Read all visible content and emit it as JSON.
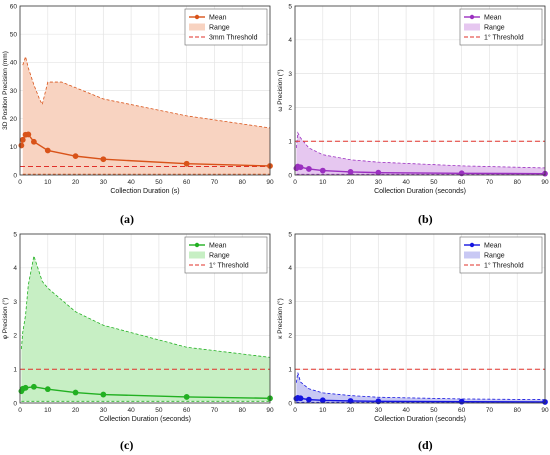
{
  "chart_data": [
    {
      "type": "line",
      "caption": "(a)",
      "xlabel": "Collection Duration (s)",
      "ylabel": "3D Position Precision (mm)",
      "xlim": [
        0,
        90
      ],
      "ylim": [
        0,
        60
      ],
      "xticks": [
        "0",
        "10",
        "20",
        "30",
        "40",
        "50",
        "60",
        "70",
        "80",
        "90"
      ],
      "yticks": [
        "0",
        "10",
        "20",
        "30",
        "40",
        "50",
        "60"
      ],
      "grid": true,
      "legend_position": "top-right",
      "legend": [
        "Mean",
        "Range",
        "3mm Threshold"
      ],
      "color": "#d95319",
      "fill": "#f8d3c1",
      "x": [
        0.5,
        1,
        2,
        3,
        5,
        10,
        20,
        30,
        60,
        90
      ],
      "mean": [
        10.5,
        12.5,
        14.3,
        14.4,
        11.8,
        8.7,
        6.7,
        5.6,
        4.0,
        3.2
      ],
      "range_upper_x": [
        1,
        2,
        3,
        5,
        7,
        8,
        10,
        15,
        20,
        30,
        60,
        90
      ],
      "range_upper": [
        39,
        42,
        38,
        32,
        27,
        25,
        33,
        33,
        31,
        27,
        21,
        16.7
      ],
      "range_lower": 0.3,
      "threshold": 3
    },
    {
      "type": "line",
      "caption": "(b)",
      "xlabel": "Collection Duration (seconds)",
      "ylabel": "ω Precision (°)",
      "xlim": [
        0,
        90
      ],
      "ylim": [
        0,
        5
      ],
      "xticks": [
        "0",
        "10",
        "20",
        "30",
        "40",
        "50",
        "60",
        "70",
        "80",
        "90"
      ],
      "yticks": [
        "0",
        "1",
        "2",
        "3",
        "4",
        "5"
      ],
      "grid": true,
      "legend_position": "top-right",
      "legend": [
        "Mean",
        "Range",
        "1° Threshold"
      ],
      "color": "#9b30c0",
      "fill": "#e6c7f0",
      "x": [
        0.5,
        1,
        2,
        5,
        10,
        20,
        30,
        60,
        90
      ],
      "mean": [
        0.2,
        0.25,
        0.23,
        0.18,
        0.13,
        0.09,
        0.07,
        0.05,
        0.04
      ],
      "range_upper_x": [
        0.5,
        1,
        2,
        5,
        10,
        20,
        30,
        60,
        90
      ],
      "range_upper": [
        0.8,
        1.25,
        1.1,
        0.8,
        0.6,
        0.45,
        0.38,
        0.27,
        0.21
      ],
      "range_lower": 0.02,
      "threshold": 1
    },
    {
      "type": "line",
      "caption": "(c)",
      "xlabel": "Collection Duration (seconds)",
      "ylabel": "φ Precision (°)",
      "xlim": [
        0,
        90
      ],
      "ylim": [
        0,
        5
      ],
      "xticks": [
        "0",
        "10",
        "20",
        "30",
        "40",
        "50",
        "60",
        "70",
        "80",
        "90"
      ],
      "yticks": [
        "0",
        "1",
        "2",
        "3",
        "4",
        "5"
      ],
      "grid": true,
      "legend_position": "top-right",
      "legend": [
        "Mean",
        "Range",
        "1° Threshold"
      ],
      "color": "#22b022",
      "fill": "#c7efc4",
      "x": [
        0.5,
        1,
        2,
        5,
        10,
        20,
        30,
        60,
        90
      ],
      "mean": [
        0.35,
        0.42,
        0.45,
        0.48,
        0.41,
        0.31,
        0.25,
        0.18,
        0.14
      ],
      "range_upper_x": [
        0.5,
        1,
        2,
        3,
        5,
        8,
        10,
        20,
        30,
        60,
        90
      ],
      "range_upper": [
        1.6,
        2.1,
        2.6,
        3.5,
        4.35,
        3.6,
        3.4,
        2.7,
        2.3,
        1.65,
        1.35
      ],
      "range_lower": 0.05,
      "threshold": 1
    },
    {
      "type": "line",
      "caption": "(d)",
      "xlabel": "Collection Duration (seconds)",
      "ylabel": "κ Precision (°)",
      "xlim": [
        0,
        90
      ],
      "ylim": [
        0,
        5
      ],
      "xticks": [
        "0",
        "10",
        "20",
        "30",
        "40",
        "50",
        "60",
        "70",
        "80",
        "90"
      ],
      "yticks": [
        "0",
        "1",
        "2",
        "3",
        "4",
        "5"
      ],
      "grid": true,
      "legend_position": "top-right",
      "legend": [
        "Mean",
        "Range",
        "1° Threshold"
      ],
      "color": "#1515e0",
      "fill": "#c8c8f4",
      "x": [
        0.5,
        1,
        2,
        5,
        10,
        20,
        30,
        60,
        90
      ],
      "mean": [
        0.13,
        0.15,
        0.14,
        0.1,
        0.08,
        0.06,
        0.05,
        0.04,
        0.03
      ],
      "range_upper_x": [
        0.5,
        1,
        2,
        5,
        10,
        20,
        30,
        60,
        90
      ],
      "range_upper": [
        0.6,
        0.9,
        0.62,
        0.42,
        0.3,
        0.22,
        0.17,
        0.12,
        0.1
      ],
      "range_lower": 0.02,
      "threshold": 1
    }
  ]
}
